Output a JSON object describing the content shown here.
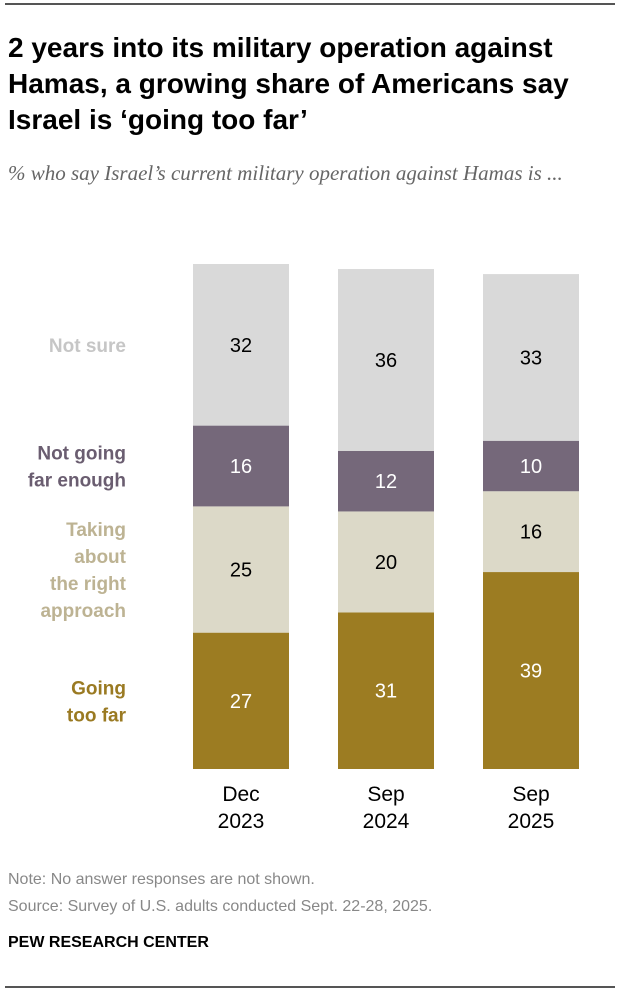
{
  "title": "2 years into its military operation against Hamas, a growing share of Americans say Israel is ‘going too far’",
  "subtitle": "% who say Israel’s current military operation against Hamas is ...",
  "chart_data": {
    "type": "bar",
    "stacked": true,
    "orientation": "vertical",
    "categories": [
      [
        "Dec",
        "2023"
      ],
      [
        "Sep",
        "2024"
      ],
      [
        "Sep",
        "2025"
      ]
    ],
    "series": [
      {
        "name": "Going too far",
        "label_lines": [
          "Going",
          "too far"
        ],
        "color": "#9c7c22",
        "label_color": "#9a7a22",
        "text_color": "#ffffff",
        "values": [
          27,
          31,
          39
        ]
      },
      {
        "name": "Taking about the right approach",
        "label_lines": [
          "Taking",
          "about",
          "the right",
          "approach"
        ],
        "color": "#dcd9c8",
        "label_color": "#bdb393",
        "text_color": "#000000",
        "values": [
          25,
          20,
          16
        ]
      },
      {
        "name": "Not going far enough",
        "label_lines": [
          "Not going",
          "far enough"
        ],
        "color": "#75687a",
        "label_color": "#6a5d70",
        "text_color": "#ffffff",
        "values": [
          16,
          12,
          10
        ]
      },
      {
        "name": "Not sure",
        "label_lines": [
          "Not sure"
        ],
        "color": "#d9d9d9",
        "label_color": "#c6c6c6",
        "text_color": "#000000",
        "values": [
          32,
          36,
          33
        ]
      }
    ],
    "ylim": [
      0,
      100
    ],
    "grid": false,
    "legend": "left, inline labels"
  },
  "note": "Note: No answer responses are not shown.",
  "source": "Source: Survey of U.S. adults conducted Sept. 22-28, 2025.",
  "brand": "PEW RESEARCH CENTER"
}
